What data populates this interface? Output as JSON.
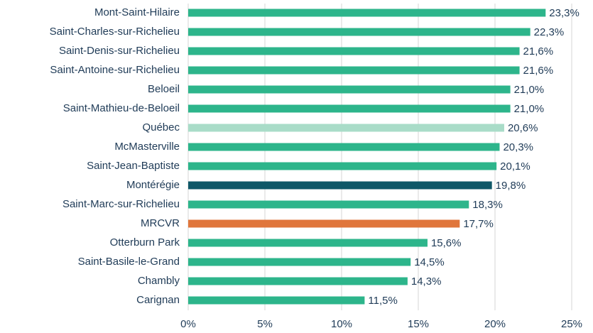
{
  "chart_data": {
    "type": "hbar",
    "categories": [
      "Mont-Saint-Hilaire",
      "Saint-Charles-sur-Richelieu",
      "Saint-Denis-sur-Richelieu",
      "Saint-Antoine-sur-Richelieu",
      "Beloeil",
      "Saint-Mathieu-de-Beloeil",
      "Québec",
      "McMasterville",
      "Saint-Jean-Baptiste",
      "Montérégie",
      "Saint-Marc-sur-Richelieu",
      "MRCVR",
      "Otterburn Park",
      "Saint-Basile-le-Grand",
      "Chambly",
      "Carignan"
    ],
    "values": [
      23.3,
      22.3,
      21.6,
      21.6,
      21.0,
      21.0,
      20.6,
      20.3,
      20.1,
      19.8,
      18.3,
      17.7,
      15.6,
      14.5,
      14.3,
      11.5
    ],
    "value_labels": [
      "23,3%",
      "22,3%",
      "21,6%",
      "21,6%",
      "21,0%",
      "21,0%",
      "20,6%",
      "20,3%",
      "20,1%",
      "19,8%",
      "18,3%",
      "17,7%",
      "15,6%",
      "14,5%",
      "14,3%",
      "11,5%"
    ],
    "colors": [
      "#2db58b",
      "#2db58b",
      "#2db58b",
      "#2db58b",
      "#2db58b",
      "#2db58b",
      "#a9dcc8",
      "#2db58b",
      "#2db58b",
      "#0f5868",
      "#2db58b",
      "#e0763c",
      "#2db58b",
      "#2db58b",
      "#2db58b",
      "#2db58b"
    ],
    "xlim": [
      0,
      25
    ],
    "xticks": [
      {
        "value": 0,
        "label": "0%"
      },
      {
        "value": 5,
        "label": "5%"
      },
      {
        "value": 10,
        "label": "10%"
      },
      {
        "value": 15,
        "label": "15%"
      },
      {
        "value": 20,
        "label": "20%"
      },
      {
        "value": 25,
        "label": "25%"
      }
    ],
    "grid": true
  }
}
